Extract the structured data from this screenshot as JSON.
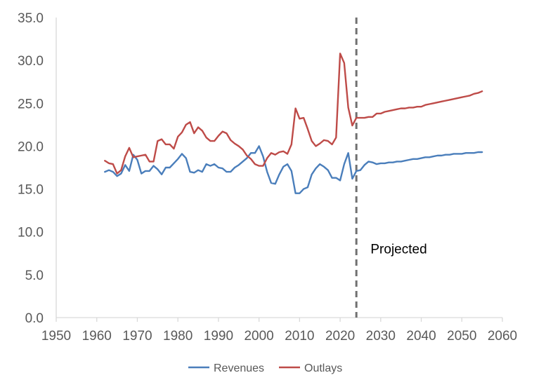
{
  "chart_data": {
    "type": "line",
    "title": "",
    "xlabel": "",
    "ylabel": "",
    "xlim": [
      1950,
      2060
    ],
    "ylim": [
      0,
      35
    ],
    "x_ticks": [
      1950,
      1960,
      1970,
      1980,
      1990,
      2000,
      2010,
      2020,
      2030,
      2040,
      2050,
      2060
    ],
    "x_tick_labels": [
      "1950",
      "1960",
      "1970",
      "1980",
      "1990",
      "2000",
      "2010",
      "2020",
      "2030",
      "2040",
      "2050",
      "2060"
    ],
    "y_ticks": [
      0,
      5,
      10,
      15,
      20,
      25,
      30,
      35
    ],
    "y_tick_labels": [
      "0.0",
      "5.0",
      "10.0",
      "15.0",
      "20.0",
      "25.0",
      "30.0",
      "35.0"
    ],
    "grid": false,
    "legend_position": "bottom",
    "colors": {
      "revenues": "#4a7ebb",
      "outlays": "#be4b48",
      "divider": "#707070",
      "axis": "#d9d9d9"
    },
    "x": [
      1962,
      1963,
      1964,
      1965,
      1966,
      1967,
      1968,
      1969,
      1970,
      1971,
      1972,
      1973,
      1974,
      1975,
      1976,
      1977,
      1978,
      1979,
      1980,
      1981,
      1982,
      1983,
      1984,
      1985,
      1986,
      1987,
      1988,
      1989,
      1990,
      1991,
      1992,
      1993,
      1994,
      1995,
      1996,
      1997,
      1998,
      1999,
      2000,
      2001,
      2002,
      2003,
      2004,
      2005,
      2006,
      2007,
      2008,
      2009,
      2010,
      2011,
      2012,
      2013,
      2014,
      2015,
      2016,
      2017,
      2018,
      2019,
      2020,
      2021,
      2022,
      2023,
      2024,
      2025,
      2026,
      2027,
      2028,
      2029,
      2030,
      2031,
      2032,
      2033,
      2034,
      2035,
      2036,
      2037,
      2038,
      2039,
      2040,
      2041,
      2042,
      2043,
      2044,
      2045,
      2046,
      2047,
      2048,
      2049,
      2050,
      2051,
      2052,
      2053,
      2054,
      2055
    ],
    "series": [
      {
        "name": "Revenues",
        "values": [
          17.0,
          17.2,
          17.0,
          16.5,
          16.8,
          17.8,
          17.1,
          19.0,
          18.4,
          16.8,
          17.1,
          17.1,
          17.7,
          17.3,
          16.7,
          17.5,
          17.5,
          18.0,
          18.5,
          19.1,
          18.6,
          17.0,
          16.9,
          17.2,
          17.0,
          17.9,
          17.7,
          17.9,
          17.5,
          17.4,
          17.0,
          17.0,
          17.5,
          17.8,
          18.2,
          18.6,
          19.2,
          19.2,
          20.0,
          18.8,
          17.0,
          15.7,
          15.6,
          16.7,
          17.6,
          17.9,
          17.1,
          14.5,
          14.5,
          15.0,
          15.2,
          16.7,
          17.4,
          17.9,
          17.6,
          17.2,
          16.3,
          16.3,
          16.0,
          17.9,
          19.2,
          16.2,
          17.1,
          17.2,
          17.8,
          18.2,
          18.1,
          17.9,
          18.0,
          18.0,
          18.1,
          18.1,
          18.2,
          18.2,
          18.3,
          18.4,
          18.5,
          18.5,
          18.6,
          18.7,
          18.7,
          18.8,
          18.9,
          18.9,
          19.0,
          19.0,
          19.1,
          19.1,
          19.1,
          19.2,
          19.2,
          19.2,
          19.3,
          19.3
        ]
      },
      {
        "name": "Outlays",
        "values": [
          18.3,
          18.0,
          17.9,
          16.8,
          17.2,
          18.8,
          19.8,
          18.7,
          18.8,
          18.9,
          19.0,
          18.2,
          18.2,
          20.6,
          20.8,
          20.2,
          20.2,
          19.7,
          21.1,
          21.6,
          22.5,
          22.8,
          21.5,
          22.2,
          21.8,
          21.0,
          20.6,
          20.6,
          21.2,
          21.7,
          21.5,
          20.7,
          20.3,
          20.0,
          19.6,
          18.9,
          18.5,
          17.9,
          17.7,
          17.7,
          18.6,
          19.2,
          19.0,
          19.3,
          19.4,
          19.1,
          20.2,
          24.4,
          23.2,
          23.3,
          22.0,
          20.6,
          20.0,
          20.3,
          20.7,
          20.6,
          20.2,
          21.0,
          30.8,
          29.7,
          24.5,
          22.4,
          23.3,
          23.3,
          23.3,
          23.4,
          23.4,
          23.8,
          23.8,
          24.0,
          24.1,
          24.2,
          24.3,
          24.4,
          24.4,
          24.5,
          24.5,
          24.6,
          24.6,
          24.8,
          24.9,
          25.0,
          25.1,
          25.2,
          25.3,
          25.4,
          25.5,
          25.6,
          25.7,
          25.8,
          25.9,
          26.1,
          26.2,
          26.4
        ]
      }
    ],
    "divider_x": 2024,
    "annotations": [
      {
        "text": "Projected",
        "x": 2027.5,
        "y": 7.5
      }
    ]
  }
}
